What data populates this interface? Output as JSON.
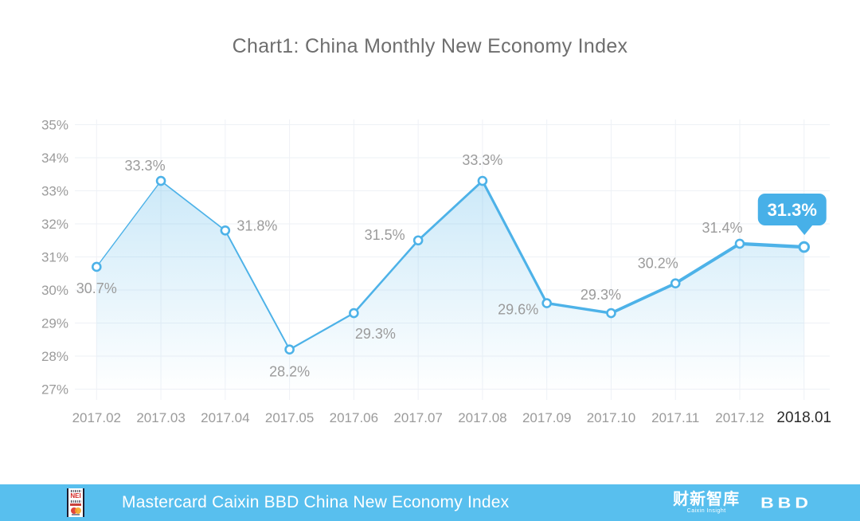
{
  "chart_data": {
    "type": "line",
    "title": "Chart1: China Monthly New Economy Index",
    "categories": [
      "2017.02",
      "2017.03",
      "2017.04",
      "2017.05",
      "2017.06",
      "2017.07",
      "2017.08",
      "2017.09",
      "2017.10",
      "2017.11",
      "2017.12",
      "2018.01"
    ],
    "values": [
      30.7,
      33.3,
      31.8,
      28.2,
      29.3,
      31.5,
      33.3,
      29.6,
      29.3,
      30.2,
      31.4,
      31.3
    ],
    "point_labels": [
      "30.7%",
      "33.3%",
      "31.8%",
      "28.2%",
      "29.3%",
      "31.5%",
      "33.3%",
      "29.6%",
      "29.3%",
      "30.2%",
      "31.4%",
      "31.3%"
    ],
    "y_ticks": [
      {
        "label": "35%",
        "value": 35
      },
      {
        "label": "34%",
        "value": 34
      },
      {
        "label": "33%",
        "value": 33
      },
      {
        "label": "32%",
        "value": 32
      },
      {
        "label": "31%",
        "value": 31
      },
      {
        "label": "30%",
        "value": 30
      },
      {
        "label": "29%",
        "value": 29
      },
      {
        "label": "28%",
        "value": 28
      },
      {
        "label": "27%",
        "value": 27
      }
    ],
    "ylim": [
      27,
      35
    ],
    "xlabel": "",
    "ylabel": "",
    "grid": true,
    "legend": false,
    "tooltip": {
      "index": 11,
      "text": "31.3%"
    },
    "highlight_last_category": true,
    "label_offsets": [
      [
        0,
        27
      ],
      [
        -20,
        -19
      ],
      [
        40,
        -6
      ],
      [
        0,
        28
      ],
      [
        27,
        26
      ],
      [
        -42,
        -7
      ],
      [
        0,
        -26
      ],
      [
        -36,
        8
      ],
      [
        -13,
        -23
      ],
      [
        -22,
        -25
      ],
      [
        -22,
        -20
      ],
      null
    ],
    "colors": {
      "line": "#4db2e8",
      "marker_fill": "#ffffff",
      "area_top": "rgba(77,178,232,0.30)",
      "area_bottom": "rgba(77,178,232,0)",
      "grid": "#eef1f6",
      "data_label": "#9b9b9b",
      "axis_label": "#9b9b9b",
      "axis_label_emphasis": "#2b2b2b",
      "title": "#6e6e6e",
      "tooltip_bg": "#47b0e8",
      "tooltip_text": "#ffffff"
    }
  },
  "footer": {
    "bar_color": "#58bfee",
    "text": "Mastercard Caixin BBD China New Economy Index",
    "nei_logo": {
      "label": "NEI"
    },
    "caixin": {
      "name": "财新智库",
      "sub": "Caixin Insight"
    },
    "bbd": "BBD"
  }
}
